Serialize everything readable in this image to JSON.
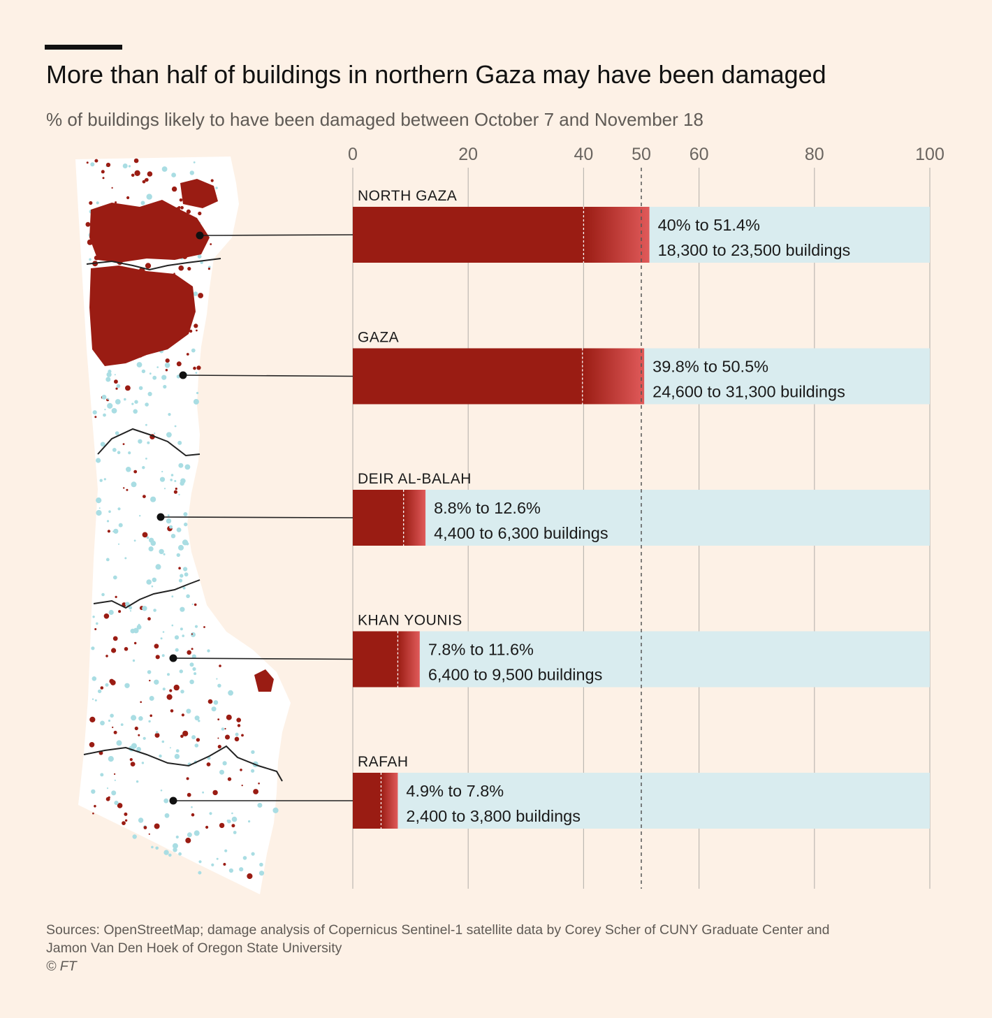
{
  "header": {
    "title": "More than half of buildings in northern Gaza may have been damaged",
    "subtitle": "% of buildings likely to have been damaged between October 7 and November 18"
  },
  "colors": {
    "background": "#fdf1e6",
    "damage": "#9a1c13",
    "damage_light": "#e05a5a",
    "track": "#d9ecef",
    "map_land": "#ffffff",
    "map_building": "#a9dde3"
  },
  "chart_data": {
    "type": "bar",
    "orientation": "horizontal-range",
    "xlim": [
      0,
      100
    ],
    "xticks": [
      0,
      20,
      40,
      50,
      60,
      80,
      100
    ],
    "reference_line": 50,
    "categories": [
      "NORTH GAZA",
      "GAZA",
      "DEIR AL-BALAH",
      "KHAN YOUNIS",
      "RAFAH"
    ],
    "series": [
      {
        "name": "low estimate (%)",
        "values": [
          40,
          39.8,
          8.8,
          7.8,
          4.9
        ]
      },
      {
        "name": "high estimate (%)",
        "values": [
          51.4,
          50.5,
          12.6,
          11.6,
          7.8
        ]
      }
    ],
    "labels": [
      {
        "range": "40% to 51.4%",
        "buildings": "18,300 to 23,500 buildings"
      },
      {
        "range": "39.8% to 50.5%",
        "buildings": "24,600 to 31,300 buildings"
      },
      {
        "range": "8.8% to 12.6%",
        "buildings": "4,400 to 6,300 buildings"
      },
      {
        "range": "7.8% to 11.6%",
        "buildings": "6,400 to 9,500 buildings"
      },
      {
        "range": "4.9% to 7.8%",
        "buildings": "2,400 to 3,800 buildings"
      }
    ]
  },
  "footer": {
    "source_line1": "Sources: OpenStreetMap; damage analysis of Copernicus Sentinel-1 satellite data by Corey Scher of CUNY Graduate Center and",
    "source_line2": "Jamon Van Den Hoek of Oregon State University",
    "credit": "© FT"
  }
}
